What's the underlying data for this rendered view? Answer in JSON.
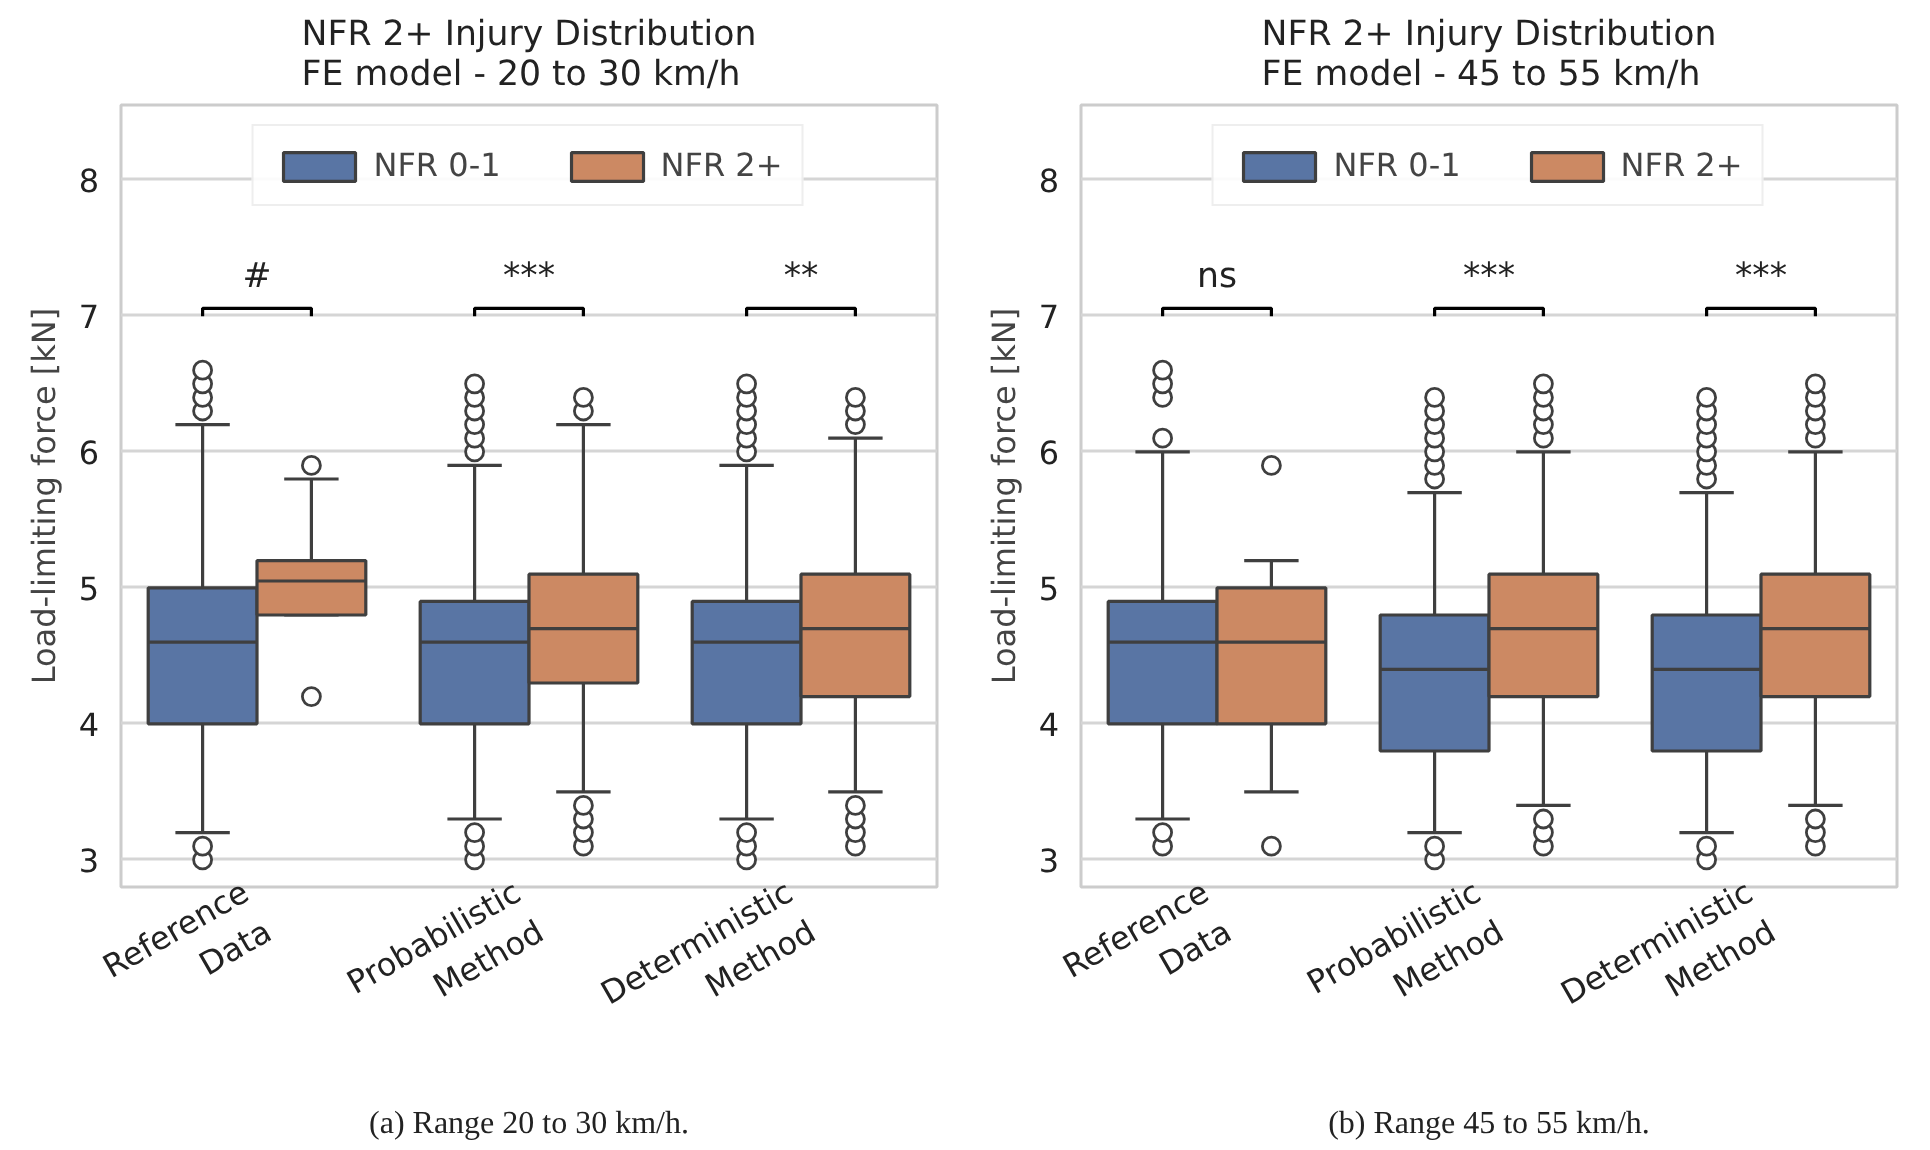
{
  "chart_data": [
    {
      "type": "box",
      "title": "NFR 2+ Injury Distribution\nFE model - 20 to 30 km/h",
      "ylabel": "Load-limiting force [kN]",
      "categories": [
        "Reference\nData",
        "Probabilistic\nMethod",
        "Deterministic\nMethod"
      ],
      "ylim": [
        2.8,
        8.55
      ],
      "yticks": [
        3,
        4,
        5,
        6,
        7,
        8
      ],
      "grid": "y",
      "legend": "top",
      "marker": "circle",
      "series": [
        {
          "name": "NFR 0-1",
          "color": "#5975a4",
          "boxes": [
            {
              "low": 3.2,
              "q1": 4.0,
              "median": 4.6,
              "q3": 5.0,
              "high": 6.2,
              "outliers": [
                6.3,
                6.4,
                6.5,
                6.6,
                3.0,
                3.1
              ]
            },
            {
              "low": 3.3,
              "q1": 4.0,
              "median": 4.6,
              "q3": 4.9,
              "high": 5.9,
              "outliers": [
                6.0,
                6.1,
                6.2,
                6.3,
                6.4,
                6.5,
                3.0,
                3.1,
                3.2
              ]
            },
            {
              "low": 3.3,
              "q1": 4.0,
              "median": 4.6,
              "q3": 4.9,
              "high": 5.9,
              "outliers": [
                6.0,
                6.1,
                6.2,
                6.3,
                6.4,
                6.5,
                3.0,
                3.1,
                3.2
              ]
            }
          ]
        },
        {
          "name": "NFR 2+",
          "color": "#cc8963",
          "boxes": [
            {
              "low": 4.8,
              "q1": 4.8,
              "median": 5.05,
              "q3": 5.2,
              "high": 5.8,
              "outliers": [
                5.9,
                4.2
              ]
            },
            {
              "low": 3.5,
              "q1": 4.3,
              "median": 4.7,
              "q3": 5.1,
              "high": 6.2,
              "outliers": [
                6.3,
                6.4,
                3.1,
                3.2,
                3.3,
                3.4
              ]
            },
            {
              "low": 3.5,
              "q1": 4.2,
              "median": 4.7,
              "q3": 5.1,
              "high": 6.1,
              "outliers": [
                6.2,
                6.3,
                6.4,
                3.1,
                3.2,
                3.3,
                3.4
              ]
            }
          ]
        }
      ],
      "annotations": [
        "#",
        "***",
        "**",
        "(a) Range 20 to 30 km/h."
      ]
    },
    {
      "type": "box",
      "title": "NFR 2+ Injury Distribution\nFE model - 45 to 55 km/h",
      "ylabel": "Load-limiting force [kN]",
      "categories": [
        "Reference\nData",
        "Probabilistic\nMethod",
        "Deterministic\nMethod"
      ],
      "ylim": [
        2.8,
        8.55
      ],
      "yticks": [
        3,
        4,
        5,
        6,
        7,
        8
      ],
      "grid": "y",
      "legend": "top",
      "marker": "circle",
      "series": [
        {
          "name": "NFR 0-1",
          "color": "#5975a4",
          "boxes": [
            {
              "low": 3.3,
              "q1": 4.0,
              "median": 4.6,
              "q3": 4.9,
              "high": 6.0,
              "outliers": [
                6.1,
                6.4,
                6.5,
                6.6,
                3.1,
                3.2
              ]
            },
            {
              "low": 3.2,
              "q1": 3.8,
              "median": 4.4,
              "q3": 4.8,
              "high": 5.7,
              "outliers": [
                5.8,
                5.9,
                6.0,
                6.1,
                6.2,
                6.3,
                6.4,
                3.0,
                3.1
              ]
            },
            {
              "low": 3.2,
              "q1": 3.8,
              "median": 4.4,
              "q3": 4.8,
              "high": 5.7,
              "outliers": [
                5.8,
                5.9,
                6.0,
                6.1,
                6.2,
                6.3,
                6.4,
                3.0,
                3.1
              ]
            }
          ]
        },
        {
          "name": "NFR 2+",
          "color": "#cc8963",
          "boxes": [
            {
              "low": 3.5,
              "q1": 4.0,
              "median": 4.6,
              "q3": 5.0,
              "high": 5.2,
              "outliers": [
                5.9,
                3.1
              ]
            },
            {
              "low": 3.4,
              "q1": 4.2,
              "median": 4.7,
              "q3": 5.1,
              "high": 6.0,
              "outliers": [
                6.1,
                6.2,
                6.3,
                6.4,
                6.5,
                3.1,
                3.2,
                3.3
              ]
            },
            {
              "low": 3.4,
              "q1": 4.2,
              "median": 4.7,
              "q3": 5.1,
              "high": 6.0,
              "outliers": [
                6.1,
                6.2,
                6.3,
                6.4,
                6.5,
                3.1,
                3.2,
                3.3
              ]
            }
          ]
        }
      ],
      "annotations": [
        "ns",
        "***",
        "***",
        "(b) Range 45 to 55 km/h."
      ]
    }
  ]
}
